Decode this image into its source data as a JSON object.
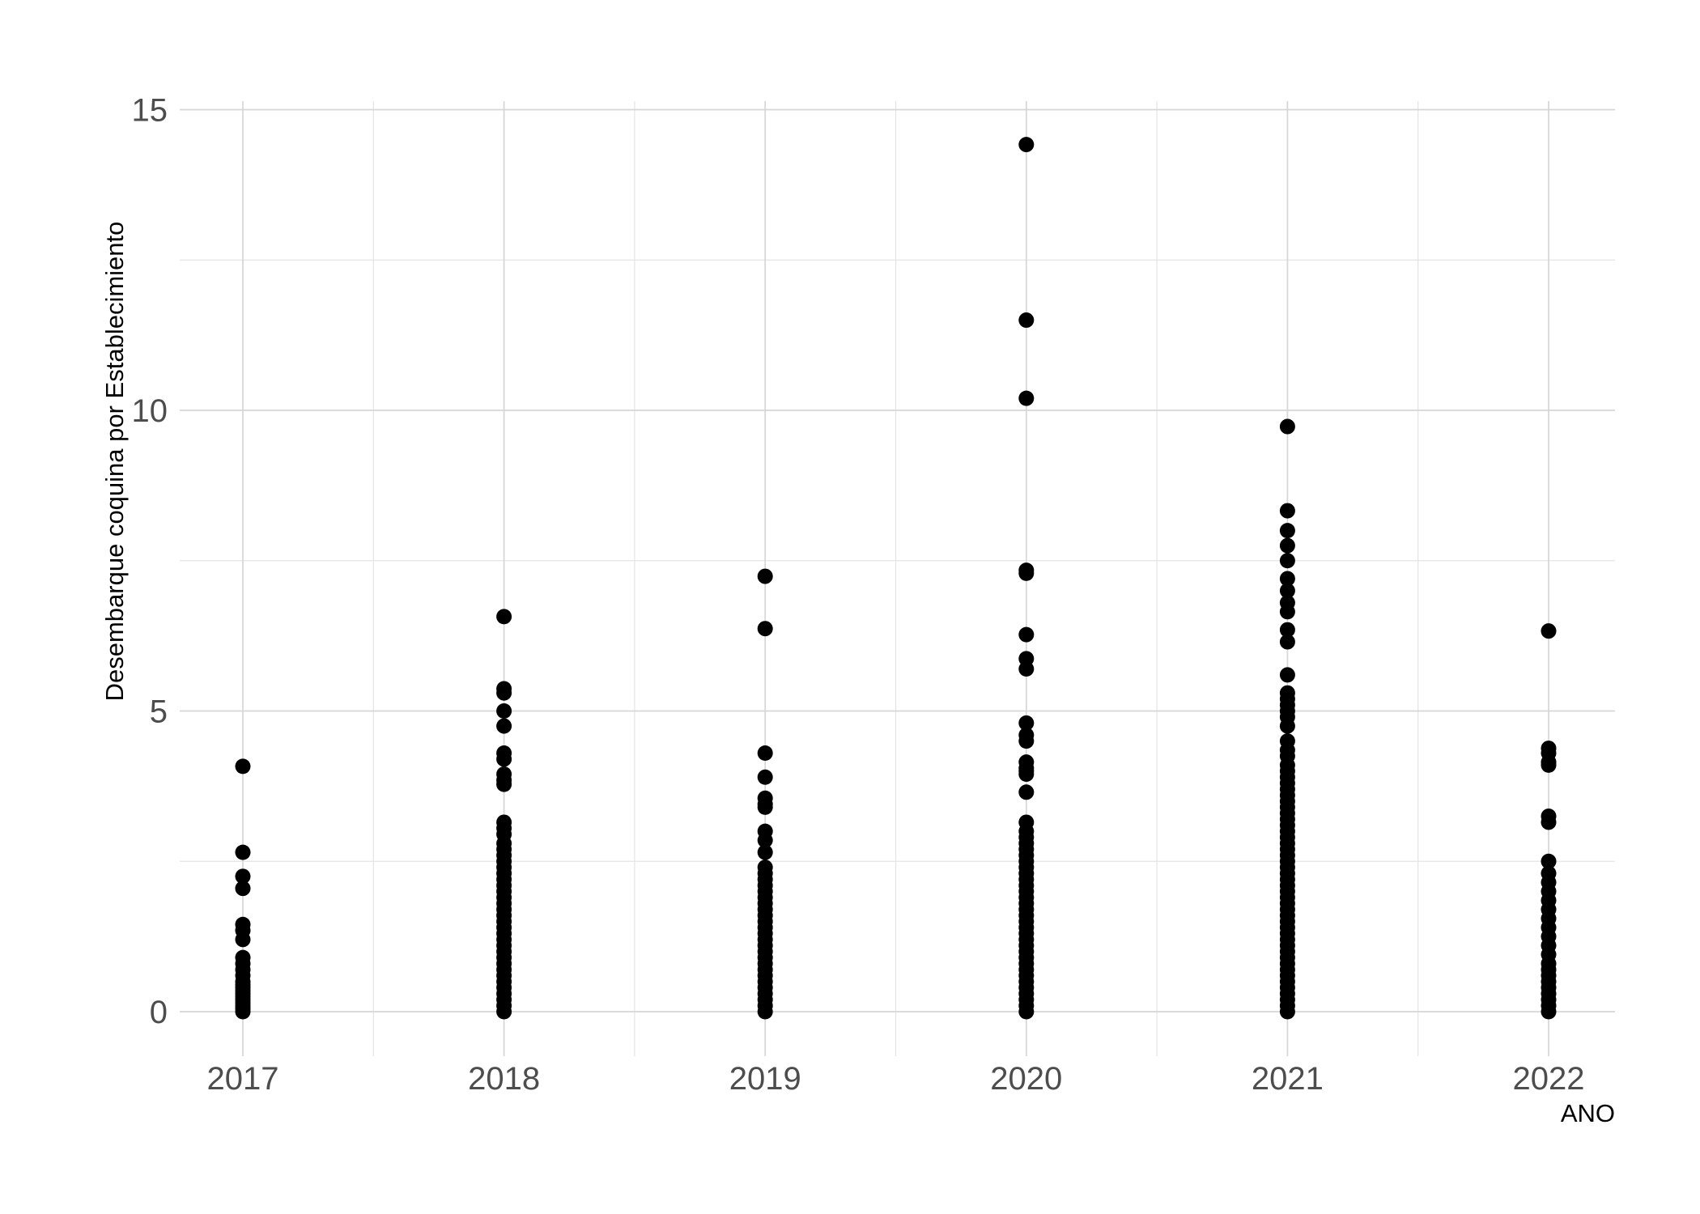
{
  "chart_data": {
    "type": "scatter",
    "xlabel": "ANO",
    "ylabel": "Desembarque coquina por Establecimiento",
    "x_ticks": [
      "2017",
      "2018",
      "2019",
      "2020",
      "2021",
      "2022"
    ],
    "y_ticks": [
      "0",
      "5",
      "10",
      "15"
    ],
    "ylim": [
      -0.6,
      15.2
    ],
    "grid": true,
    "point_color": "#000000",
    "series": [
      {
        "x": "2017",
        "values": [
          4.08,
          2.65,
          2.25,
          2.05,
          1.45,
          1.35,
          1.2,
          0.9,
          0.8,
          0.7,
          0.6,
          0.5,
          0.45,
          0.4,
          0.35,
          0.3,
          0.25,
          0.2,
          0.15,
          0.1,
          0.05,
          0.0
        ]
      },
      {
        "x": "2018",
        "values": [
          6.57,
          5.37,
          5.3,
          5.0,
          4.75,
          4.3,
          4.2,
          3.95,
          3.85,
          3.78,
          3.15,
          3.05,
          2.95,
          2.8,
          2.7,
          2.6,
          2.5,
          2.4,
          2.3,
          2.2,
          2.1,
          2.0,
          1.9,
          1.8,
          1.7,
          1.6,
          1.5,
          1.4,
          1.3,
          1.2,
          1.1,
          1.0,
          0.9,
          0.8,
          0.7,
          0.6,
          0.5,
          0.4,
          0.3,
          0.2,
          0.1,
          0.0
        ]
      },
      {
        "x": "2019",
        "values": [
          7.24,
          6.37,
          4.3,
          3.9,
          3.55,
          3.45,
          3.4,
          3.0,
          2.85,
          2.65,
          2.4,
          2.3,
          2.2,
          2.1,
          2.0,
          1.9,
          1.8,
          1.7,
          1.6,
          1.5,
          1.4,
          1.3,
          1.2,
          1.1,
          1.0,
          0.9,
          0.8,
          0.7,
          0.6,
          0.5,
          0.4,
          0.3,
          0.2,
          0.1,
          0.0
        ]
      },
      {
        "x": "2020",
        "values": [
          14.42,
          11.5,
          10.2,
          7.34,
          7.29,
          6.27,
          5.87,
          5.7,
          4.8,
          4.6,
          4.5,
          4.15,
          4.05,
          4.0,
          3.95,
          3.65,
          3.15,
          3.0,
          2.9,
          2.8,
          2.7,
          2.6,
          2.5,
          2.4,
          2.3,
          2.2,
          2.1,
          2.0,
          1.9,
          1.8,
          1.7,
          1.6,
          1.5,
          1.4,
          1.3,
          1.2,
          1.1,
          1.0,
          0.9,
          0.8,
          0.7,
          0.6,
          0.5,
          0.4,
          0.3,
          0.2,
          0.1,
          0.0
        ]
      },
      {
        "x": "2021",
        "values": [
          9.73,
          8.33,
          8.0,
          7.75,
          7.5,
          7.2,
          7.0,
          6.8,
          6.65,
          6.35,
          6.15,
          5.6,
          5.3,
          5.2,
          5.1,
          5.0,
          4.9,
          4.75,
          4.5,
          4.35,
          4.25,
          4.1,
          4.0,
          3.9,
          3.8,
          3.7,
          3.6,
          3.5,
          3.4,
          3.3,
          3.2,
          3.1,
          3.0,
          2.9,
          2.8,
          2.7,
          2.6,
          2.5,
          2.4,
          2.3,
          2.2,
          2.1,
          2.0,
          1.9,
          1.8,
          1.7,
          1.6,
          1.5,
          1.4,
          1.3,
          1.2,
          1.1,
          1.0,
          0.9,
          0.8,
          0.7,
          0.6,
          0.5,
          0.4,
          0.3,
          0.2,
          0.1,
          0.0
        ]
      },
      {
        "x": "2022",
        "values": [
          6.33,
          4.38,
          4.3,
          4.15,
          4.1,
          3.25,
          3.15,
          2.5,
          2.3,
          2.15,
          2.0,
          1.85,
          1.7,
          1.55,
          1.4,
          1.25,
          1.1,
          0.95,
          0.8,
          0.7,
          0.6,
          0.5,
          0.4,
          0.3,
          0.2,
          0.1,
          0.0
        ]
      }
    ]
  }
}
